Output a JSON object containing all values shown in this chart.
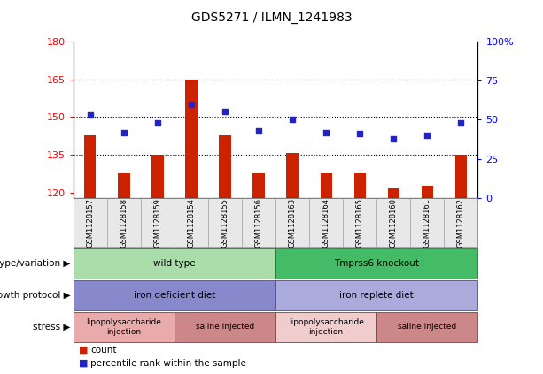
{
  "title": "GDS5271 / ILMN_1241983",
  "samples": [
    "GSM1128157",
    "GSM1128158",
    "GSM1128159",
    "GSM1128154",
    "GSM1128155",
    "GSM1128156",
    "GSM1128163",
    "GSM1128164",
    "GSM1128165",
    "GSM1128160",
    "GSM1128161",
    "GSM1128162"
  ],
  "counts": [
    143,
    128,
    135,
    165,
    143,
    128,
    136,
    128,
    128,
    122,
    123,
    135
  ],
  "percentiles": [
    53,
    42,
    48,
    60,
    55,
    43,
    50,
    42,
    41,
    38,
    40,
    48
  ],
  "ylim_left": [
    118,
    180
  ],
  "ylim_right": [
    0,
    100
  ],
  "yticks_left": [
    120,
    135,
    150,
    165,
    180
  ],
  "yticks_right": [
    0,
    25,
    50,
    75,
    100
  ],
  "grid_values": [
    135,
    150,
    165
  ],
  "bar_color": "#cc2200",
  "dot_color": "#2222cc",
  "bar_bottom": 118,
  "genotype_groups": [
    {
      "label": "wild type",
      "start": 0,
      "end": 6,
      "color": "#aaddaa"
    },
    {
      "label": "Tmprss6 knockout",
      "start": 6,
      "end": 12,
      "color": "#44bb66"
    }
  ],
  "protocol_groups": [
    {
      "label": "iron deficient diet",
      "start": 0,
      "end": 6,
      "color": "#8888cc"
    },
    {
      "label": "iron replete diet",
      "start": 6,
      "end": 12,
      "color": "#aaaadd"
    }
  ],
  "stress_groups": [
    {
      "label": "lipopolysaccharide\ninjection",
      "start": 0,
      "end": 3,
      "color": "#e8aaaa"
    },
    {
      "label": "saline injected",
      "start": 3,
      "end": 6,
      "color": "#cc8888"
    },
    {
      "label": "lipopolysaccharide\ninjection",
      "start": 6,
      "end": 9,
      "color": "#f0cccc"
    },
    {
      "label": "saline injected",
      "start": 9,
      "end": 12,
      "color": "#cc8888"
    }
  ],
  "row_labels": [
    "genotype/variation",
    "growth protocol",
    "stress"
  ],
  "legend_items": [
    {
      "label": "count",
      "color": "#cc2200"
    },
    {
      "label": "percentile rank within the sample",
      "color": "#2222cc"
    }
  ]
}
